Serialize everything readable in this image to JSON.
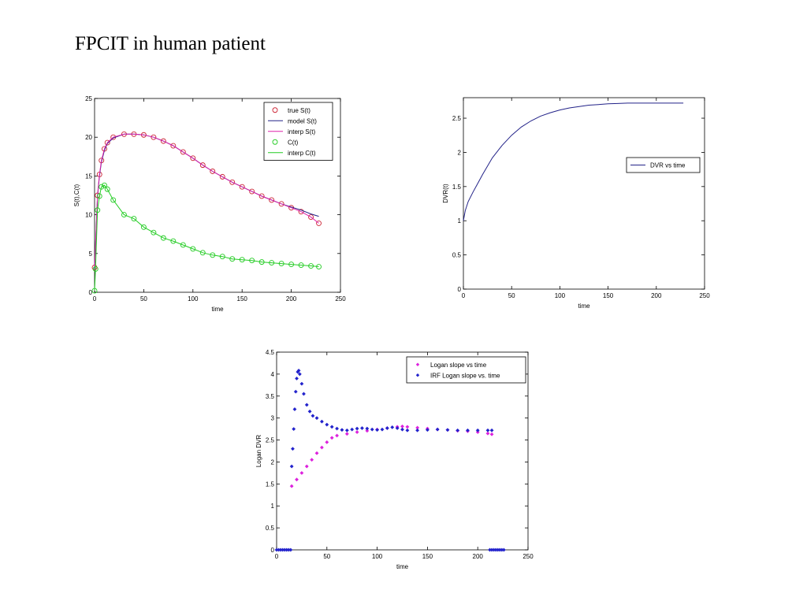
{
  "slide_title": "FPCIT in human patient",
  "chart_data": [
    {
      "type": "line",
      "xlabel": "time",
      "ylabel": "S(t),C(t)",
      "xlim": [
        0,
        250
      ],
      "ylim": [
        0,
        25
      ],
      "xticks": [
        "0",
        "50",
        "100",
        "150",
        "200",
        "250"
      ],
      "yticks": [
        "0",
        "5",
        "10",
        "15",
        "20",
        "25"
      ],
      "legend_position": "top-right",
      "series": [
        {
          "name": "true S(t)",
          "marker": "circle",
          "color": "#cc2233",
          "x": [
            0,
            3,
            5,
            7,
            10,
            13,
            19,
            30,
            40,
            50,
            60,
            70,
            80,
            90,
            100,
            110,
            120,
            130,
            140,
            150,
            160,
            170,
            180,
            190,
            200,
            210,
            220,
            228
          ],
          "y": [
            3.2,
            12.5,
            15.2,
            17.0,
            18.5,
            19.3,
            20.0,
            20.4,
            20.4,
            20.3,
            20.0,
            19.5,
            18.9,
            18.1,
            17.3,
            16.4,
            15.6,
            14.9,
            14.2,
            13.6,
            13.0,
            12.4,
            11.9,
            11.4,
            10.9,
            10.4,
            9.7,
            8.9
          ]
        },
        {
          "name": "model S(t)",
          "marker": "line",
          "color": "#222288",
          "x": [
            0,
            3,
            5,
            7,
            10,
            13,
            19,
            30,
            40,
            50,
            60,
            70,
            80,
            90,
            100,
            110,
            120,
            130,
            140,
            150,
            160,
            170,
            180,
            190,
            200,
            210,
            220,
            228
          ],
          "y": [
            3.0,
            12.3,
            15.0,
            16.8,
            18.3,
            19.2,
            19.9,
            20.4,
            20.4,
            20.3,
            20.0,
            19.5,
            18.9,
            18.1,
            17.3,
            16.4,
            15.6,
            14.9,
            14.2,
            13.6,
            13.0,
            12.4,
            11.9,
            11.4,
            11.0,
            10.6,
            10.1,
            9.8
          ]
        },
        {
          "name": "interp S(t)",
          "marker": "line",
          "color": "#dd22aa",
          "x": [
            0,
            3,
            5,
            7,
            10,
            13,
            19,
            30,
            40,
            50,
            60,
            70,
            80,
            90,
            100,
            110,
            120,
            130,
            140,
            150,
            160,
            170,
            180,
            190,
            200,
            210,
            220,
            228
          ],
          "y": [
            3.2,
            12.5,
            15.2,
            17.0,
            18.5,
            19.3,
            20.0,
            20.4,
            20.4,
            20.3,
            20.0,
            19.5,
            18.9,
            18.1,
            17.3,
            16.4,
            15.6,
            14.9,
            14.2,
            13.6,
            13.0,
            12.4,
            11.9,
            11.4,
            10.9,
            10.4,
            9.7,
            8.9
          ]
        },
        {
          "name": "C(t)",
          "marker": "circle",
          "color": "#22cc22",
          "x": [
            0,
            1,
            3,
            5,
            7,
            10,
            13,
            19,
            30,
            40,
            50,
            60,
            70,
            80,
            90,
            100,
            110,
            120,
            130,
            140,
            150,
            160,
            170,
            180,
            190,
            200,
            210,
            220,
            228
          ],
          "y": [
            0.2,
            3.0,
            10.6,
            12.4,
            13.6,
            13.8,
            13.3,
            11.9,
            10.0,
            9.5,
            8.4,
            7.7,
            7.0,
            6.6,
            6.1,
            5.6,
            5.1,
            4.8,
            4.6,
            4.3,
            4.2,
            4.1,
            3.9,
            3.8,
            3.7,
            3.6,
            3.5,
            3.4,
            3.3
          ]
        },
        {
          "name": "interp C(t)",
          "marker": "line",
          "color": "#22cc22",
          "x": [
            0,
            1,
            3,
            5,
            7,
            10,
            13,
            19,
            30,
            40,
            50,
            60,
            70,
            80,
            90,
            100,
            110,
            120,
            130,
            140,
            150,
            160,
            170,
            180,
            190,
            200,
            210,
            220,
            228
          ],
          "y": [
            0.2,
            3.0,
            10.6,
            12.4,
            13.6,
            13.8,
            13.3,
            11.9,
            10.0,
            9.5,
            8.4,
            7.7,
            7.0,
            6.6,
            6.1,
            5.6,
            5.1,
            4.8,
            4.6,
            4.3,
            4.2,
            4.1,
            3.9,
            3.8,
            3.7,
            3.6,
            3.5,
            3.4,
            3.3
          ]
        }
      ]
    },
    {
      "type": "line",
      "xlabel": "time",
      "ylabel": "DVR(t)",
      "xlim": [
        0,
        250
      ],
      "ylim": [
        0,
        2.8
      ],
      "xticks": [
        "0",
        "50",
        "100",
        "150",
        "200",
        "250"
      ],
      "yticks": [
        "0",
        "0.5",
        "1",
        "1.5",
        "2",
        "2.5"
      ],
      "yticks_values": [
        0,
        0.5,
        1,
        1.5,
        2,
        2.5
      ],
      "legend_position": "right",
      "series": [
        {
          "name": "DVR vs time",
          "marker": "line",
          "color": "#222288",
          "x": [
            0,
            2,
            5,
            10,
            15,
            20,
            30,
            40,
            50,
            60,
            70,
            80,
            90,
            100,
            110,
            120,
            130,
            140,
            150,
            160,
            170,
            180,
            190,
            200,
            210,
            220,
            228
          ],
          "y": [
            1.0,
            1.15,
            1.28,
            1.42,
            1.55,
            1.68,
            1.92,
            2.1,
            2.25,
            2.37,
            2.46,
            2.53,
            2.58,
            2.62,
            2.65,
            2.67,
            2.69,
            2.7,
            2.71,
            2.715,
            2.72,
            2.72,
            2.72,
            2.72,
            2.72,
            2.72,
            2.72
          ]
        }
      ]
    },
    {
      "type": "scatter",
      "xlabel": "time",
      "ylabel": "Logan DVR",
      "xlim": [
        0,
        250
      ],
      "ylim": [
        0,
        4.5
      ],
      "xticks": [
        "0",
        "50",
        "100",
        "150",
        "200",
        "250"
      ],
      "yticks": [
        "0",
        "0.5",
        "1",
        "1.5",
        "2",
        "2.5",
        "3",
        "3.5",
        "4",
        "4.5"
      ],
      "legend_position": "top-right",
      "series": [
        {
          "name": "Logan slope vs time",
          "marker": "diamond",
          "color": "#dd22dd",
          "x": [
            15,
            20,
            25,
            30,
            35,
            40,
            45,
            50,
            55,
            60,
            70,
            80,
            90,
            100,
            110,
            120,
            125,
            130,
            140,
            150,
            160,
            170,
            180,
            190,
            200,
            210,
            214
          ],
          "y": [
            1.45,
            1.6,
            1.75,
            1.9,
            2.05,
            2.2,
            2.33,
            2.45,
            2.55,
            2.6,
            2.64,
            2.68,
            2.71,
            2.74,
            2.77,
            2.8,
            2.81,
            2.8,
            2.78,
            2.76,
            2.74,
            2.73,
            2.71,
            2.7,
            2.68,
            2.65,
            2.63
          ]
        },
        {
          "name": "IRF Logan slope vs. time",
          "marker": "diamond",
          "color": "#2222cc",
          "x": [
            15,
            16,
            17,
            18,
            19,
            20,
            21,
            22,
            23,
            25,
            27,
            30,
            33,
            36,
            40,
            45,
            50,
            55,
            60,
            65,
            70,
            75,
            80,
            85,
            90,
            95,
            100,
            105,
            110,
            115,
            120,
            125,
            130,
            140,
            150,
            160,
            170,
            180,
            190,
            200,
            210,
            214
          ],
          "y": [
            1.9,
            2.3,
            2.75,
            3.2,
            3.6,
            3.9,
            4.05,
            4.08,
            4.0,
            3.78,
            3.55,
            3.3,
            3.15,
            3.05,
            3.0,
            2.92,
            2.85,
            2.8,
            2.76,
            2.73,
            2.72,
            2.74,
            2.76,
            2.77,
            2.76,
            2.74,
            2.73,
            2.74,
            2.77,
            2.79,
            2.77,
            2.74,
            2.72,
            2.72,
            2.73,
            2.74,
            2.73,
            2.72,
            2.72,
            2.72,
            2.72,
            2.72
          ]
        },
        {
          "name": "",
          "marker": "diamond",
          "color": "#2222cc",
          "x": [
            0,
            2,
            4,
            6,
            8,
            10,
            12,
            14,
            212,
            214,
            216,
            218,
            220,
            222,
            224,
            226
          ],
          "y": [
            0,
            0,
            0,
            0,
            0,
            0,
            0,
            0,
            0,
            0,
            0,
            0,
            0,
            0,
            0,
            0
          ]
        }
      ]
    }
  ]
}
